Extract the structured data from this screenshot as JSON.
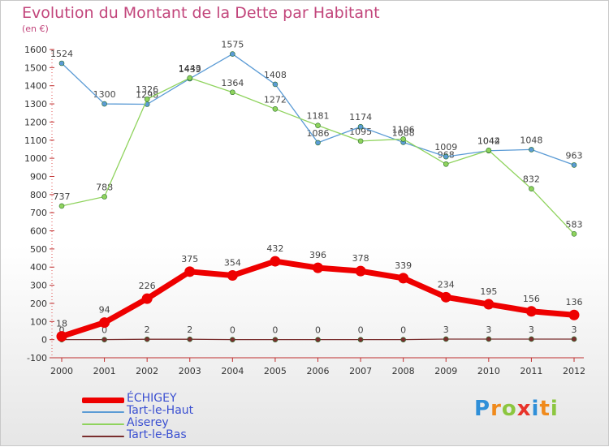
{
  "header": {
    "title": "Evolution du Montant de la Dette par Habitant",
    "unit": "(en €)"
  },
  "brand": {
    "name": "Proxiti",
    "letters": [
      {
        "ch": "P",
        "color": "#2f8fd8"
      },
      {
        "ch": "r",
        "color": "#f08a1c"
      },
      {
        "ch": "o",
        "color": "#8cc63f"
      },
      {
        "ch": "x",
        "color": "#e8332a"
      },
      {
        "ch": "i",
        "color": "#2f8fd8"
      },
      {
        "ch": "t",
        "color": "#f08a1c"
      },
      {
        "ch": "i",
        "color": "#8cc63f"
      }
    ]
  },
  "chart_data": {
    "type": "line",
    "title": "Evolution du Montant de la Dette par Habitant",
    "subtitle": "(en €)",
    "xlabel": "",
    "ylabel": "",
    "x": [
      "2000",
      "2001",
      "2002",
      "2003",
      "2004",
      "2005",
      "2006",
      "2007",
      "2008",
      "2009",
      "2010",
      "2011",
      "2012"
    ],
    "ylim": [
      -100,
      1600
    ],
    "yticks": [
      -100,
      0,
      100,
      200,
      300,
      400,
      500,
      600,
      700,
      800,
      900,
      1000,
      1100,
      1200,
      1300,
      1400,
      1500,
      1600
    ],
    "grid": false,
    "legend_position": "bottom-left",
    "series": [
      {
        "name": "ÉCHIGEY",
        "color": "#ee0000",
        "values": [
          18,
          94,
          226,
          375,
          354,
          432,
          396,
          378,
          339,
          234,
          195,
          156,
          136
        ]
      },
      {
        "name": "Tart-le-Haut",
        "color": "#5b9bd5",
        "values": [
          1524,
          1300,
          1298,
          1439,
          1575,
          1408,
          1086,
          1174,
          1088,
          1009,
          1042,
          1048,
          963
        ]
      },
      {
        "name": "Aiserey",
        "color": "#8fd35d",
        "values": [
          737,
          788,
          1326,
          1443,
          1364,
          1272,
          1181,
          1095,
          1106,
          968,
          1044,
          832,
          583
        ]
      },
      {
        "name": "Tart-le-Bas",
        "color": "#7a2e2e",
        "values": [
          0,
          0,
          2,
          2,
          0,
          0,
          0,
          0,
          0,
          3,
          3,
          3,
          3
        ]
      }
    ]
  }
}
